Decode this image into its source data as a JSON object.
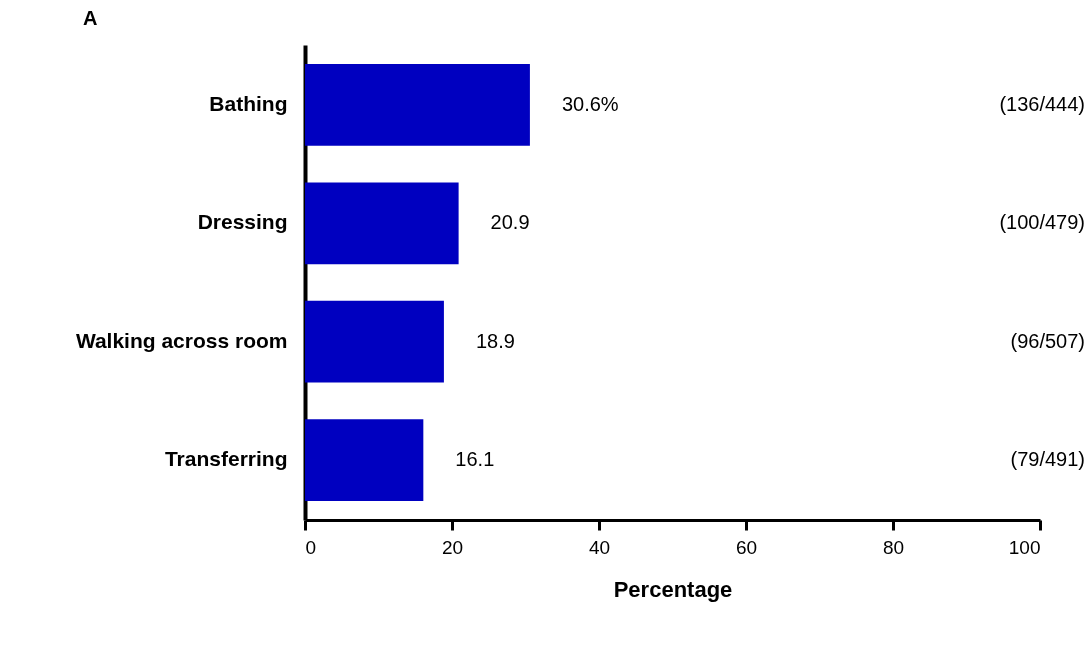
{
  "chart_data": {
    "type": "bar",
    "orientation": "horizontal",
    "title": "A",
    "xlabel": "Percentage",
    "categories": [
      "Bathing",
      "Dressing",
      "Walking across room",
      "Transferring"
    ],
    "values": [
      30.6,
      20.9,
      18.9,
      16.1
    ],
    "value_labels": [
      "30.6%",
      "20.9",
      "18.9",
      "16.1"
    ],
    "color": "#0000c0",
    "xlim": [
      0,
      100
    ],
    "xticks": [
      0,
      20,
      40,
      60,
      80,
      100
    ],
    "grid": false,
    "annotations": [
      "(136/444)",
      "(100/479)",
      "(96/507)",
      "(79/491)"
    ]
  }
}
